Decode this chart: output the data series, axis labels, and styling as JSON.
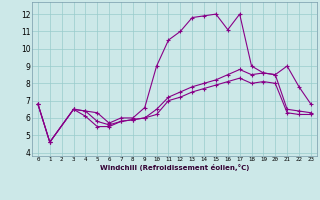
{
  "xlabel": "Windchill (Refroidissement éolien,°C)",
  "xlim": [
    -0.5,
    23.5
  ],
  "ylim": [
    3.8,
    12.7
  ],
  "yticks": [
    4,
    5,
    6,
    7,
    8,
    9,
    10,
    11,
    12
  ],
  "xticks": [
    0,
    1,
    2,
    3,
    4,
    5,
    6,
    7,
    8,
    9,
    10,
    11,
    12,
    13,
    14,
    15,
    16,
    17,
    18,
    19,
    20,
    21,
    22,
    23
  ],
  "bg_color": "#cce8e8",
  "line_color": "#880088",
  "grid_color": "#99cccc",
  "line1_x": [
    0,
    1,
    3,
    4,
    5,
    6,
    7,
    8,
    9,
    10,
    11,
    12,
    13,
    14,
    15,
    16,
    17,
    18,
    19,
    20,
    21,
    22,
    23
  ],
  "line1_y": [
    6.8,
    4.6,
    6.5,
    6.4,
    6.3,
    5.7,
    6.0,
    6.0,
    6.6,
    9.0,
    10.5,
    11.0,
    11.8,
    11.9,
    12.0,
    11.1,
    12.0,
    9.0,
    8.6,
    8.5,
    9.0,
    7.8,
    6.8
  ],
  "line2_x": [
    0,
    1,
    3,
    4,
    5,
    6,
    7,
    8,
    9,
    10,
    11,
    12,
    13,
    14,
    15,
    16,
    17,
    18,
    19,
    20,
    21,
    22,
    23
  ],
  "line2_y": [
    6.8,
    4.6,
    6.5,
    6.4,
    5.8,
    5.6,
    5.8,
    5.9,
    6.0,
    6.5,
    7.2,
    7.5,
    7.8,
    8.0,
    8.2,
    8.5,
    8.8,
    8.5,
    8.6,
    8.5,
    6.5,
    6.4,
    6.3
  ],
  "line3_x": [
    0,
    1,
    3,
    4,
    5,
    6,
    7,
    8,
    9,
    10,
    11,
    12,
    13,
    14,
    15,
    16,
    17,
    18,
    19,
    20,
    21,
    22,
    23
  ],
  "line3_y": [
    6.8,
    4.6,
    6.5,
    6.1,
    5.5,
    5.5,
    5.8,
    5.9,
    6.0,
    6.2,
    7.0,
    7.2,
    7.5,
    7.7,
    7.9,
    8.1,
    8.3,
    8.0,
    8.1,
    8.0,
    6.3,
    6.2,
    6.2
  ],
  "xlabel_fontsize": 5.0,
  "tick_fontsize_x": 4.2,
  "tick_fontsize_y": 5.5
}
